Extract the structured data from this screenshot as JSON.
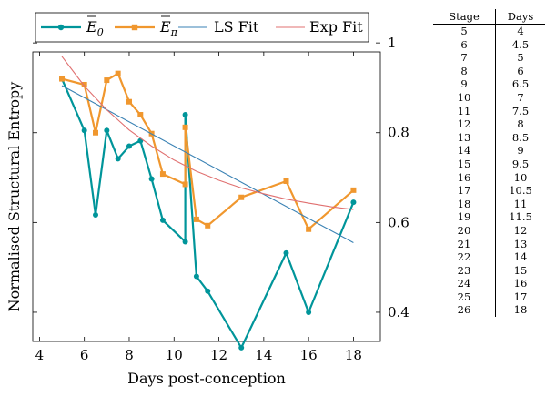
{
  "chart_data": {
    "type": "line",
    "xlabel": "Days post-conception",
    "ylabel": "Normalised Structural Entropy",
    "xlim": [
      3.7,
      19.2
    ],
    "ylim": [
      0.335,
      0.98
    ],
    "xticks": [
      4,
      6,
      8,
      10,
      12,
      14,
      16,
      18
    ],
    "yticks": [
      0.4,
      0.6,
      0.8,
      1
    ],
    "ytick_labels": [
      "0.4",
      "0.6",
      "0.8",
      "1"
    ],
    "y_axis_side": "right",
    "grid": false,
    "legend_position": "top",
    "series": [
      {
        "name": "Ē₀",
        "legend_base": "E",
        "legend_sub": "0",
        "color": "#00959a",
        "marker": "circle",
        "x": [
          5,
          6,
          6.5,
          7,
          7.5,
          8,
          8.5,
          9,
          9.5,
          10.5,
          10.5,
          11,
          11.5,
          13,
          15,
          16,
          18
        ],
        "y": [
          0.92,
          0.805,
          0.617,
          0.805,
          0.742,
          0.77,
          0.782,
          0.697,
          0.605,
          0.557,
          0.84,
          0.48,
          0.447,
          0.321,
          0.532,
          0.4,
          0.645
        ]
      },
      {
        "name": "Ēπ",
        "legend_base": "E",
        "legend_sub": "π",
        "color": "#f0972e",
        "marker": "square",
        "x": [
          5,
          6,
          6.5,
          7,
          7.5,
          8,
          8.5,
          9,
          9.5,
          10.5,
          10.5,
          11,
          11.5,
          13,
          15,
          16,
          18
        ],
        "y": [
          0.92,
          0.907,
          0.8,
          0.917,
          0.932,
          0.869,
          0.84,
          0.798,
          0.708,
          0.685,
          0.812,
          0.607,
          0.593,
          0.656,
          0.692,
          0.585,
          0.672
        ]
      },
      {
        "name": "LS Fit",
        "color": "#3a82b4",
        "marker": "none",
        "x": [
          5,
          18
        ],
        "y": [
          0.905,
          0.555
        ]
      },
      {
        "name": "Exp Fit",
        "color": "#e07070",
        "marker": "none",
        "x": [
          5,
          6,
          7,
          8,
          9,
          10,
          11,
          12,
          13,
          14,
          15,
          16,
          17,
          18
        ],
        "y": [
          0.97,
          0.904,
          0.851,
          0.806,
          0.77,
          0.739,
          0.714,
          0.694,
          0.677,
          0.664,
          0.652,
          0.643,
          0.635,
          0.629
        ]
      }
    ]
  },
  "table": {
    "headers": [
      "Stage",
      "Days"
    ],
    "rows": [
      [
        "5",
        "4"
      ],
      [
        "6",
        "4.5"
      ],
      [
        "7",
        "5"
      ],
      [
        "8",
        "6"
      ],
      [
        "9",
        "6.5"
      ],
      [
        "10",
        "7"
      ],
      [
        "11",
        "7.5"
      ],
      [
        "12",
        "8"
      ],
      [
        "13",
        "8.5"
      ],
      [
        "14",
        "9"
      ],
      [
        "15",
        "9.5"
      ],
      [
        "16",
        "10"
      ],
      [
        "17",
        "10.5"
      ],
      [
        "18",
        "11"
      ],
      [
        "19",
        "11.5"
      ],
      [
        "20",
        "12"
      ],
      [
        "21",
        "13"
      ],
      [
        "22",
        "14"
      ],
      [
        "23",
        "15"
      ],
      [
        "24",
        "16"
      ],
      [
        "25",
        "17"
      ],
      [
        "26",
        "18"
      ]
    ]
  }
}
